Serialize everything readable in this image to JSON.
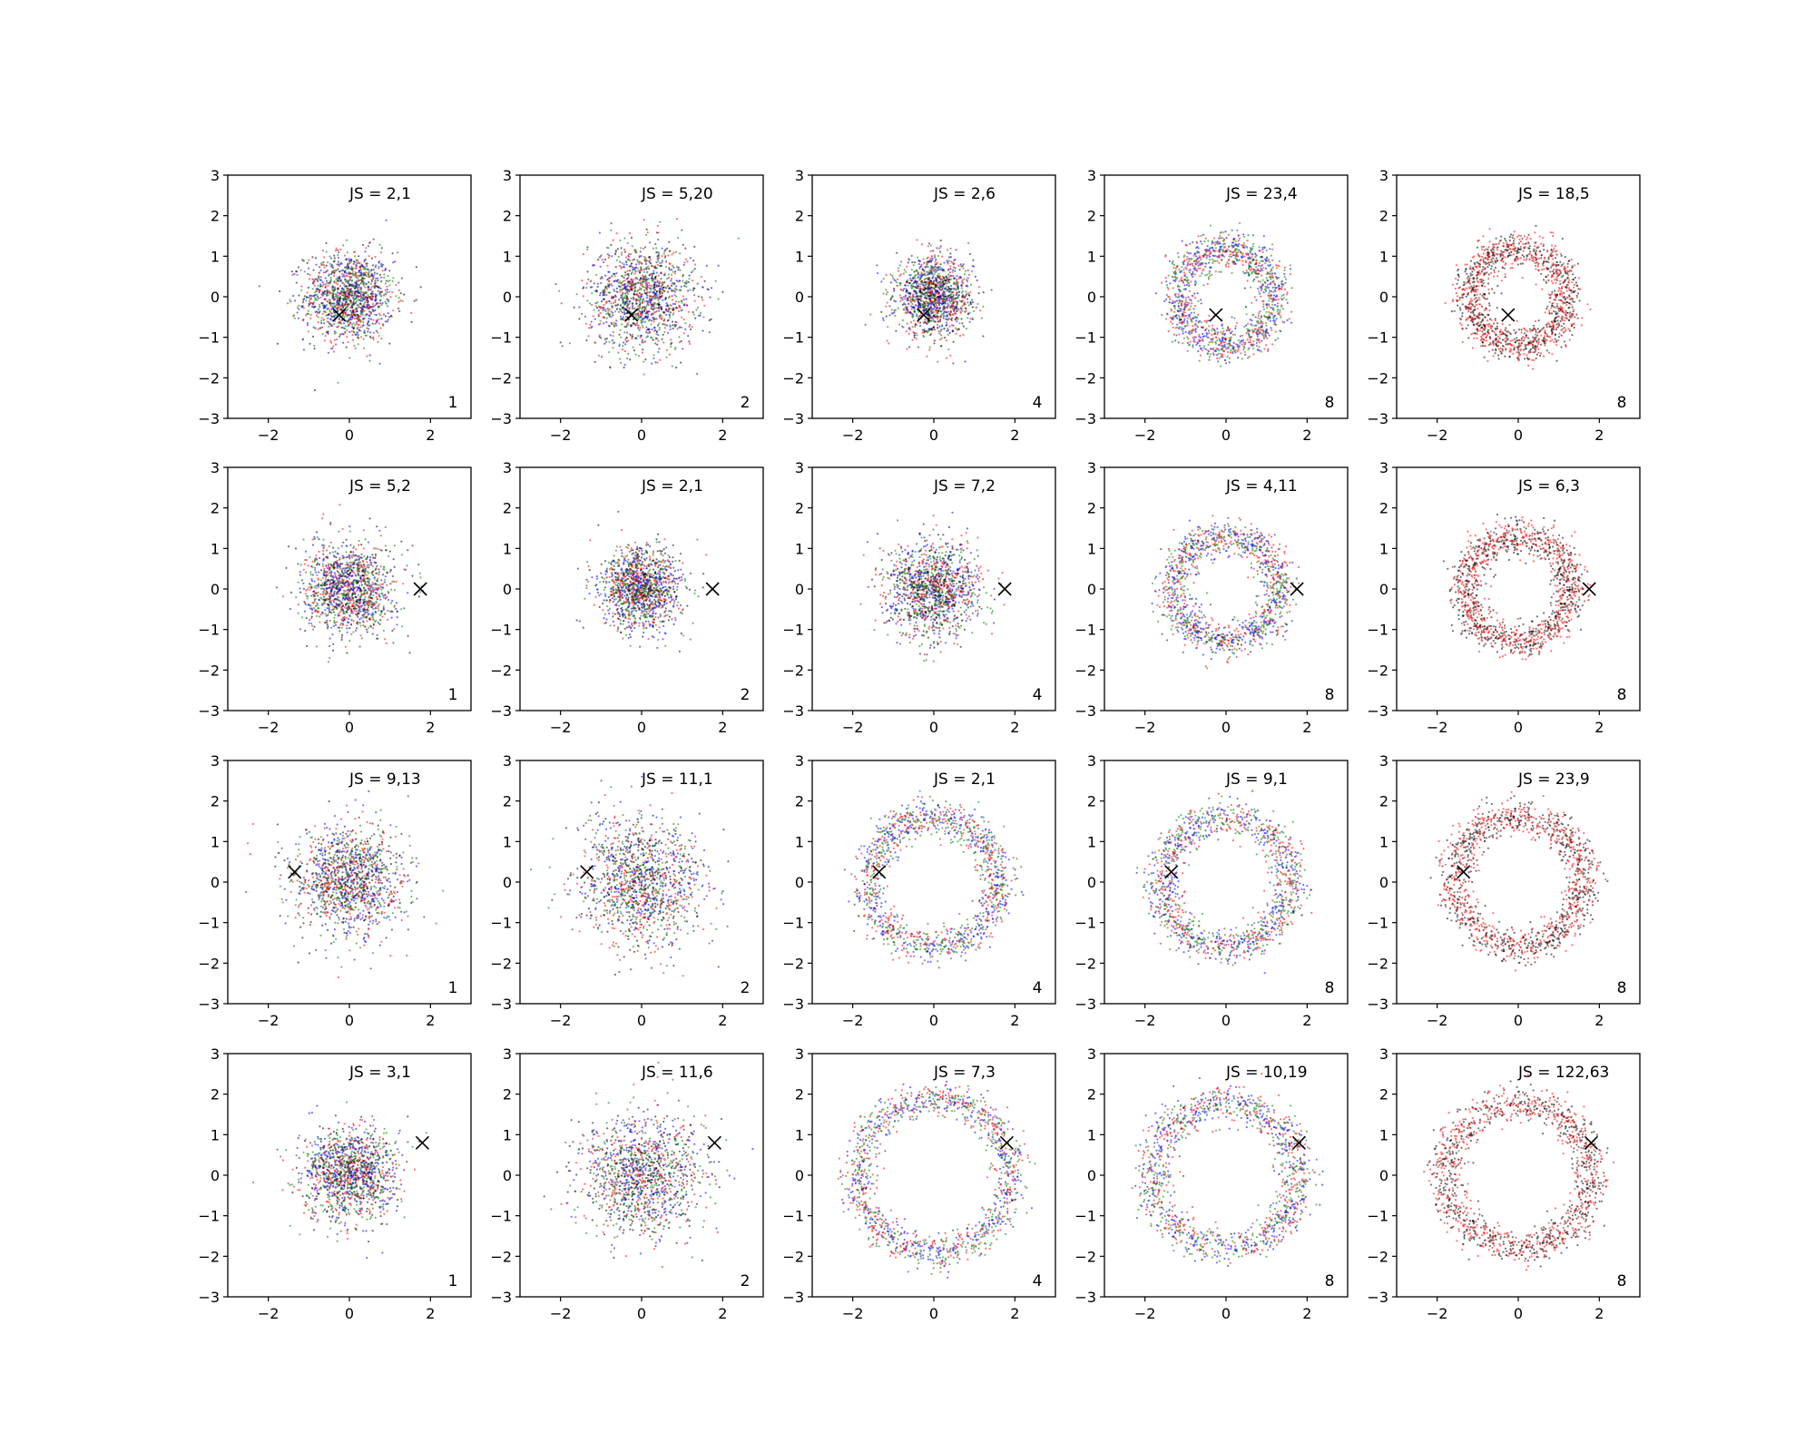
{
  "chart_data": {
    "type": "scatter",
    "grid": false,
    "xlim": [
      -3,
      3
    ],
    "ylim": [
      -3,
      3
    ],
    "xticks": [
      -2,
      0,
      2
    ],
    "yticks": [
      -3,
      -2,
      -1,
      0,
      1,
      2,
      3
    ],
    "series_colors": [
      "#ff0000",
      "#0000ff",
      "#008000",
      "#000000"
    ],
    "panels": [
      {
        "row": 1,
        "col": 1,
        "js_label": "JS = 2,1",
        "corner_label": "1",
        "marker": [
          -0.25,
          -0.45
        ],
        "distribution": "blob",
        "radius": 1.0,
        "colors": [
          "#ff0000",
          "#0000ff",
          "#008000",
          "#000000"
        ]
      },
      {
        "row": 1,
        "col": 2,
        "js_label": "JS = 5,20",
        "corner_label": "2",
        "marker": [
          -0.25,
          -0.45
        ],
        "distribution": "blob",
        "radius": 1.2,
        "colors": [
          "#ff0000",
          "#0000ff",
          "#008000",
          "#000000"
        ]
      },
      {
        "row": 1,
        "col": 3,
        "js_label": "JS = 2,6",
        "corner_label": "4",
        "marker": [
          -0.25,
          -0.45
        ],
        "distribution": "blob",
        "radius": 0.85,
        "colors": [
          "#ff0000",
          "#0000ff",
          "#008000",
          "#000000"
        ]
      },
      {
        "row": 1,
        "col": 4,
        "js_label": "JS = 23,4",
        "corner_label": "8",
        "marker": [
          -0.25,
          -0.45
        ],
        "distribution": "ring",
        "radius": 1.2,
        "colors": [
          "#ff0000",
          "#0000ff",
          "#008000"
        ]
      },
      {
        "row": 1,
        "col": 5,
        "js_label": "JS = 18,5",
        "corner_label": "8",
        "marker": [
          -0.25,
          -0.45
        ],
        "distribution": "ring",
        "radius": 1.2,
        "colors": [
          "#ff0000",
          "#000000"
        ]
      },
      {
        "row": 2,
        "col": 1,
        "js_label": "JS = 5,2",
        "corner_label": "1",
        "marker": [
          1.75,
          0.0
        ],
        "distribution": "blob",
        "radius": 1.0,
        "colors": [
          "#ff0000",
          "#0000ff",
          "#008000",
          "#000000"
        ]
      },
      {
        "row": 2,
        "col": 2,
        "js_label": "JS = 2,1",
        "corner_label": "2",
        "marker": [
          1.75,
          0.0
        ],
        "distribution": "blob",
        "radius": 0.9,
        "colors": [
          "#ff0000",
          "#0000ff",
          "#008000",
          "#000000"
        ]
      },
      {
        "row": 2,
        "col": 3,
        "js_label": "JS = 7,2",
        "corner_label": "4",
        "marker": [
          1.75,
          0.0
        ],
        "distribution": "blob",
        "radius": 1.05,
        "colors": [
          "#ff0000",
          "#0000ff",
          "#008000",
          "#000000"
        ]
      },
      {
        "row": 2,
        "col": 4,
        "js_label": "JS = 4,11",
        "corner_label": "8",
        "marker": [
          1.75,
          0.0
        ],
        "distribution": "ring",
        "radius": 1.3,
        "colors": [
          "#ff0000",
          "#0000ff",
          "#008000"
        ]
      },
      {
        "row": 2,
        "col": 5,
        "js_label": "JS = 6,3",
        "corner_label": "8",
        "marker": [
          1.75,
          0.0
        ],
        "distribution": "ring",
        "radius": 1.3,
        "colors": [
          "#ff0000",
          "#000000"
        ]
      },
      {
        "row": 3,
        "col": 1,
        "js_label": "JS = 9,13",
        "corner_label": "1",
        "marker": [
          -1.35,
          0.25
        ],
        "distribution": "blob",
        "radius": 1.25,
        "colors": [
          "#ff0000",
          "#0000ff",
          "#008000",
          "#000000"
        ]
      },
      {
        "row": 3,
        "col": 2,
        "js_label": "JS = 11,1",
        "corner_label": "2",
        "marker": [
          -1.35,
          0.25
        ],
        "distribution": "blob",
        "radius": 1.4,
        "colors": [
          "#ff0000",
          "#0000ff",
          "#008000",
          "#000000"
        ]
      },
      {
        "row": 3,
        "col": 3,
        "js_label": "JS = 2,1",
        "corner_label": "4",
        "marker": [
          -1.35,
          0.25
        ],
        "distribution": "ring",
        "radius": 1.6,
        "colors": [
          "#ff0000",
          "#0000ff",
          "#008000"
        ]
      },
      {
        "row": 3,
        "col": 4,
        "js_label": "JS = 9,1",
        "corner_label": "8",
        "marker": [
          -1.35,
          0.25
        ],
        "distribution": "ring",
        "radius": 1.6,
        "colors": [
          "#ff0000",
          "#0000ff",
          "#008000"
        ]
      },
      {
        "row": 3,
        "col": 5,
        "js_label": "JS = 23,9",
        "corner_label": "8",
        "marker": [
          -1.35,
          0.25
        ],
        "distribution": "ring",
        "radius": 1.6,
        "colors": [
          "#ff0000",
          "#000000"
        ]
      },
      {
        "row": 4,
        "col": 1,
        "js_label": "JS = 3,1",
        "corner_label": "1",
        "marker": [
          1.8,
          0.8
        ],
        "distribution": "blob",
        "radius": 1.05,
        "colors": [
          "#ff0000",
          "#0000ff",
          "#008000",
          "#000000"
        ]
      },
      {
        "row": 4,
        "col": 2,
        "js_label": "JS = 11,6",
        "corner_label": "2",
        "marker": [
          1.8,
          0.8
        ],
        "distribution": "blob",
        "radius": 1.35,
        "colors": [
          "#ff0000",
          "#0000ff",
          "#008000",
          "#000000"
        ]
      },
      {
        "row": 4,
        "col": 3,
        "js_label": "JS = 7,3",
        "corner_label": "4",
        "marker": [
          1.8,
          0.8
        ],
        "distribution": "ring",
        "radius": 1.9,
        "colors": [
          "#ff0000",
          "#0000ff",
          "#008000"
        ]
      },
      {
        "row": 4,
        "col": 4,
        "js_label": "JS = 10,19",
        "corner_label": "8",
        "marker": [
          1.8,
          0.8
        ],
        "distribution": "ring",
        "radius": 1.8,
        "colors": [
          "#ff0000",
          "#0000ff",
          "#008000"
        ]
      },
      {
        "row": 4,
        "col": 5,
        "js_label": "JS = 122,63",
        "corner_label": "8",
        "marker": [
          1.8,
          0.8
        ],
        "distribution": "ring",
        "radius": 1.8,
        "colors": [
          "#ff0000",
          "#000000"
        ]
      }
    ]
  }
}
